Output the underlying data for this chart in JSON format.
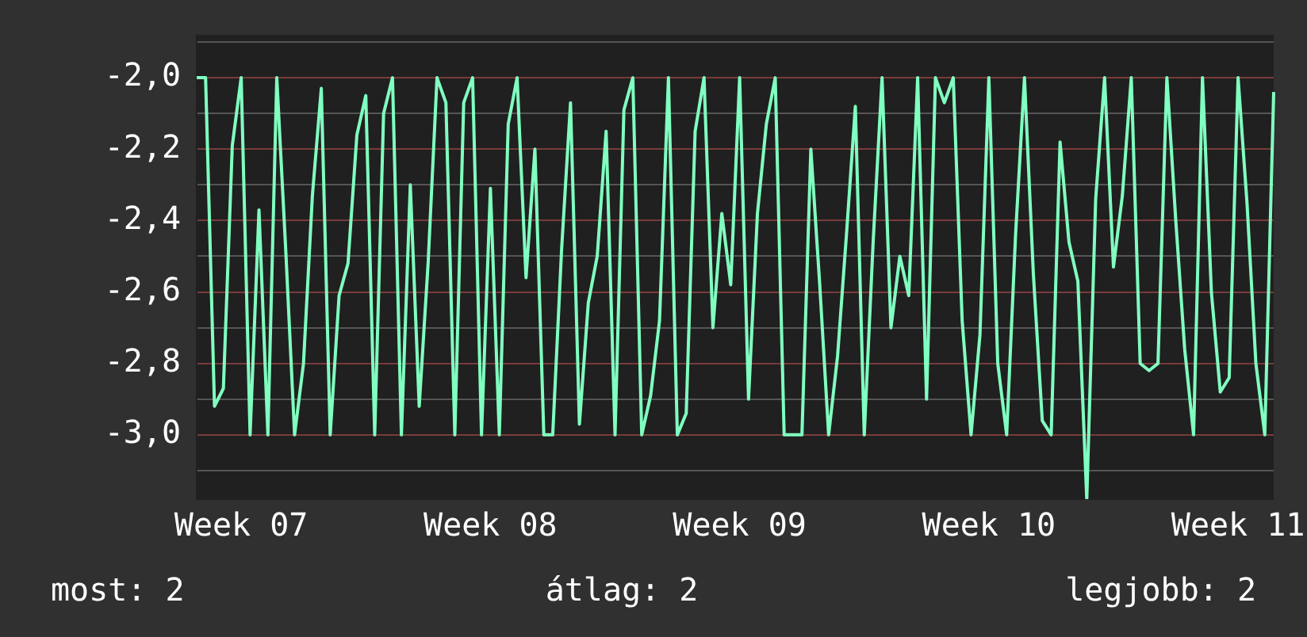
{
  "chart_data": {
    "type": "line",
    "categories": [
      null,
      null,
      null,
      null,
      null,
      "Week 07",
      null,
      null,
      null,
      null,
      null,
      null,
      null,
      null,
      null,
      null,
      null,
      null,
      null,
      null,
      null,
      null,
      null,
      null,
      null,
      null,
      null,
      null,
      null,
      null,
      null,
      null,
      null,
      "Week 08",
      null,
      null,
      null,
      null,
      null,
      null,
      null,
      null,
      null,
      null,
      null,
      null,
      null,
      null,
      null,
      null,
      null,
      null,
      null,
      null,
      null,
      null,
      null,
      null,
      null,
      null,
      null,
      "Week 09",
      null,
      null,
      null,
      null,
      null,
      null,
      null,
      null,
      null,
      null,
      null,
      null,
      null,
      null,
      null,
      null,
      null,
      null,
      null,
      null,
      null,
      null,
      null,
      null,
      null,
      null,
      null,
      "Week 10",
      null,
      null,
      null,
      null,
      null,
      null,
      null,
      null,
      null,
      null,
      null,
      null,
      null,
      null,
      null,
      null,
      null,
      null,
      null,
      null,
      null,
      null,
      null,
      null,
      null,
      null,
      null,
      "Week 11",
      null,
      null,
      null,
      null
    ],
    "series": [
      {
        "color": "#80ffc0",
        "values": [
          -2.0,
          -2.0,
          -2.92,
          -2.87,
          -2.19,
          -2.0,
          -3.0,
          -2.37,
          -3.0,
          -2.0,
          -2.48,
          -3.0,
          -2.8,
          -2.33,
          -2.03,
          -3.0,
          -2.61,
          -2.52,
          -2.16,
          -2.05,
          -3.0,
          -2.1,
          -2.0,
          -3.0,
          -2.3,
          -2.92,
          -2.52,
          -2.0,
          -2.07,
          -3.0,
          -2.07,
          -2.0,
          -3.0,
          -2.31,
          -3.0,
          -2.13,
          -2.0,
          -2.56,
          -2.2,
          -3.0,
          -3.0,
          -2.48,
          -2.07,
          -2.97,
          -2.63,
          -2.5,
          -2.15,
          -3.0,
          -2.09,
          -2.0,
          -3.0,
          -2.89,
          -2.68,
          -2.0,
          -3.0,
          -2.94,
          -2.15,
          -2.0,
          -2.7,
          -2.38,
          -2.58,
          -2.0,
          -2.9,
          -2.38,
          -2.13,
          -2.0,
          -3.0,
          -3.0,
          -3.0,
          -2.2,
          -2.58,
          -3.0,
          -2.78,
          -2.44,
          -2.08,
          -3.0,
          -2.46,
          -2.0,
          -2.7,
          -2.5,
          -2.61,
          -2.0,
          -2.9,
          -2.0,
          -2.07,
          -2.0,
          -2.68,
          -3.0,
          -2.72,
          -2.0,
          -2.8,
          -3.0,
          -2.44,
          -2.0,
          -2.55,
          -2.96,
          -3.0,
          -2.18,
          -2.46,
          -2.57,
          -3.18,
          -2.34,
          -2.0,
          -2.53,
          -2.33,
          -2.0,
          -2.8,
          -2.82,
          -2.8,
          -2.0,
          -2.4,
          -2.76,
          -3.0,
          -2.0,
          -2.6,
          -2.88,
          -2.84,
          -2.0,
          -2.35,
          -2.8,
          -3.0,
          -2.04
        ]
      }
    ],
    "ylim": [
      -3.18,
      -1.88
    ],
    "yticks": [
      {
        "value": -1.9,
        "label": null
      },
      {
        "value": -2.0,
        "label": "-2,0"
      },
      {
        "value": -2.1,
        "label": null
      },
      {
        "value": -2.2,
        "label": "-2,2"
      },
      {
        "value": -2.3,
        "label": null
      },
      {
        "value": -2.4,
        "label": "-2,4"
      },
      {
        "value": -2.5,
        "label": null
      },
      {
        "value": -2.6,
        "label": "-2,6"
      },
      {
        "value": -2.7,
        "label": null
      },
      {
        "value": -2.8,
        "label": "-2,8"
      },
      {
        "value": -2.9,
        "label": null
      },
      {
        "value": -3.0,
        "label": "-3,0"
      },
      {
        "value": -3.1,
        "label": null
      }
    ],
    "grid": "y",
    "legend": false,
    "marker": "none",
    "line_style": "solid",
    "annotations": [
      "most: 2",
      "átlag: 2",
      "legjobb: 2"
    ]
  }
}
